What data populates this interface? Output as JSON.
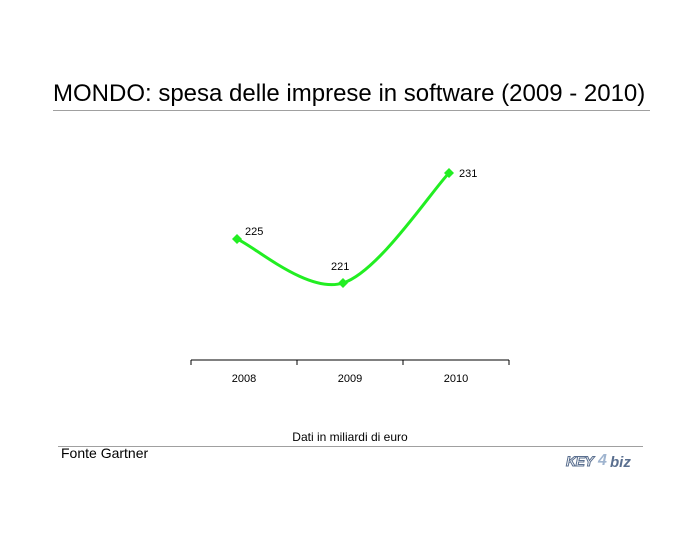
{
  "page": {
    "title": "MONDO: spesa delle imprese in software (2009 - 2010)",
    "footnote": "Dati in miliardi di euro",
    "source": "Fonte Gartner",
    "logo": {
      "part1": "KEY",
      "part2": "4",
      "part3": "biz"
    }
  },
  "chart_data": {
    "type": "line",
    "categories": [
      "2008",
      "2009",
      "2010"
    ],
    "series": [
      {
        "values": [
          225,
          221,
          231
        ],
        "color": "#22ee22"
      }
    ],
    "data_labels": [
      "225",
      "221",
      "231"
    ],
    "grid": false,
    "legend": "none"
  }
}
